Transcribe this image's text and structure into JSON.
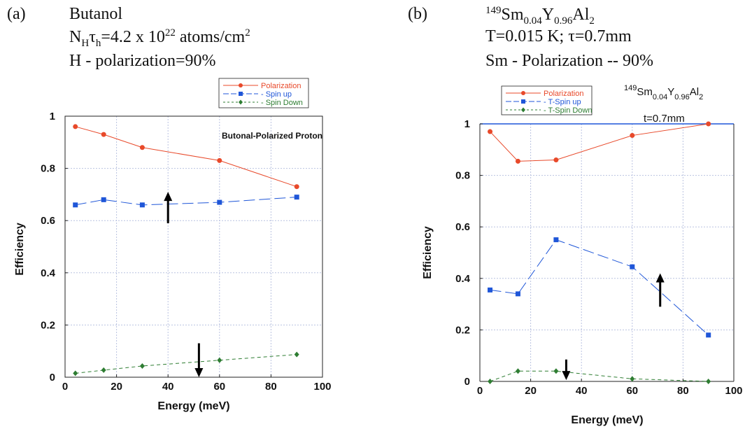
{
  "colors": {
    "polarization": "#e8492a",
    "spin_up": "#1f56d8",
    "spin_down": "#2e7d32",
    "grid": "#b9c2e0",
    "frame": "#222222"
  },
  "panel_a": {
    "tag": "(a)",
    "head": {
      "line1": "Butanol",
      "l2_a": "N",
      "l2_b": "H",
      "l2_c": "τ",
      "l2_d": "h",
      "l2_e": "=4.2 x 10",
      "l2_f": "22",
      "l2_g": " atoms/cm",
      "l2_h": "2",
      "line3": "H - polarization=90%"
    }
  },
  "panel_b": {
    "tag": "(b)",
    "head": {
      "l1_a": "149",
      "l1_b": "Sm",
      "l1_c": "0.04",
      "l1_d": "Y",
      "l1_e": "0.96",
      "l1_f": "Al",
      "l1_g": "2",
      "line2": "T=0.015 K; τ=0.7mm",
      "line3": "Sm - Polarization -- 90%"
    }
  },
  "chart_data": [
    {
      "type": "line",
      "xlabel": "Energy (meV)",
      "ylabel": "Efficiency",
      "xlim": [
        0,
        100
      ],
      "ylim": [
        0,
        1
      ],
      "x_ticks": [
        "0",
        "20",
        "40",
        "60",
        "80",
        "100"
      ],
      "y_ticks": [
        "0",
        "0.2",
        "0.4",
        "0.6",
        "0.8",
        "1"
      ],
      "grid": true,
      "legend_position": "top-right",
      "annotation": "Butonal-Polarized Proton",
      "arrows": [
        {
          "direction": "up",
          "x": 40,
          "y_from": 0.59,
          "y_to": 0.71
        },
        {
          "direction": "down",
          "x": 52,
          "y_from": 0.13,
          "y_to": 0.0
        }
      ],
      "series": [
        {
          "name": "Polarization",
          "marker": "circle",
          "x": [
            4,
            15,
            30,
            60,
            90
          ],
          "values": [
            0.96,
            0.93,
            0.88,
            0.83,
            0.73
          ]
        },
        {
          "name": "- Spin up",
          "marker": "square",
          "x": [
            4,
            15,
            30,
            60,
            90
          ],
          "values": [
            0.66,
            0.68,
            0.66,
            0.67,
            0.69
          ]
        },
        {
          "name": "- Spin Down",
          "marker": "diamond",
          "x": [
            4,
            15,
            30,
            60,
            90
          ],
          "values": [
            0.015,
            0.027,
            0.043,
            0.065,
            0.087
          ]
        }
      ]
    },
    {
      "type": "line",
      "xlabel": "Energy (meV)",
      "ylabel": "Efficiency",
      "xlim": [
        0,
        100
      ],
      "ylim": [
        0,
        1
      ],
      "x_ticks": [
        "0",
        "20",
        "40",
        "60",
        "80",
        "100"
      ],
      "y_ticks": [
        "0",
        "0.2",
        "0.4",
        "0.6",
        "0.8",
        "1"
      ],
      "grid": true,
      "legend_position": "top-left",
      "annotation_formula": {
        "a": "149",
        "b": "Sm",
        "c": "0.04",
        "d": "Y",
        "e": "0.96",
        "f": "Al",
        "g": "2",
        "line2": "t=0.7mm"
      },
      "arrows": [
        {
          "direction": "up",
          "x": 71,
          "y_from": 0.29,
          "y_to": 0.42
        },
        {
          "direction": "down",
          "x": 34,
          "y_from": 0.085,
          "y_to": 0.005
        }
      ],
      "series": [
        {
          "name": "Polarization",
          "marker": "circle",
          "x": [
            4,
            15,
            30,
            60,
            90
          ],
          "values": [
            0.97,
            0.855,
            0.86,
            0.955,
            1.0
          ]
        },
        {
          "name": "- T-Spin up",
          "marker": "square",
          "x": [
            4,
            15,
            30,
            60,
            90
          ],
          "values": [
            0.355,
            0.34,
            0.55,
            0.445,
            0.18
          ]
        },
        {
          "name": "- T-Spin Down",
          "marker": "diamond",
          "x": [
            4,
            15,
            30,
            60,
            90
          ],
          "values": [
            0.0,
            0.04,
            0.04,
            0.01,
            0.0
          ]
        }
      ]
    }
  ]
}
